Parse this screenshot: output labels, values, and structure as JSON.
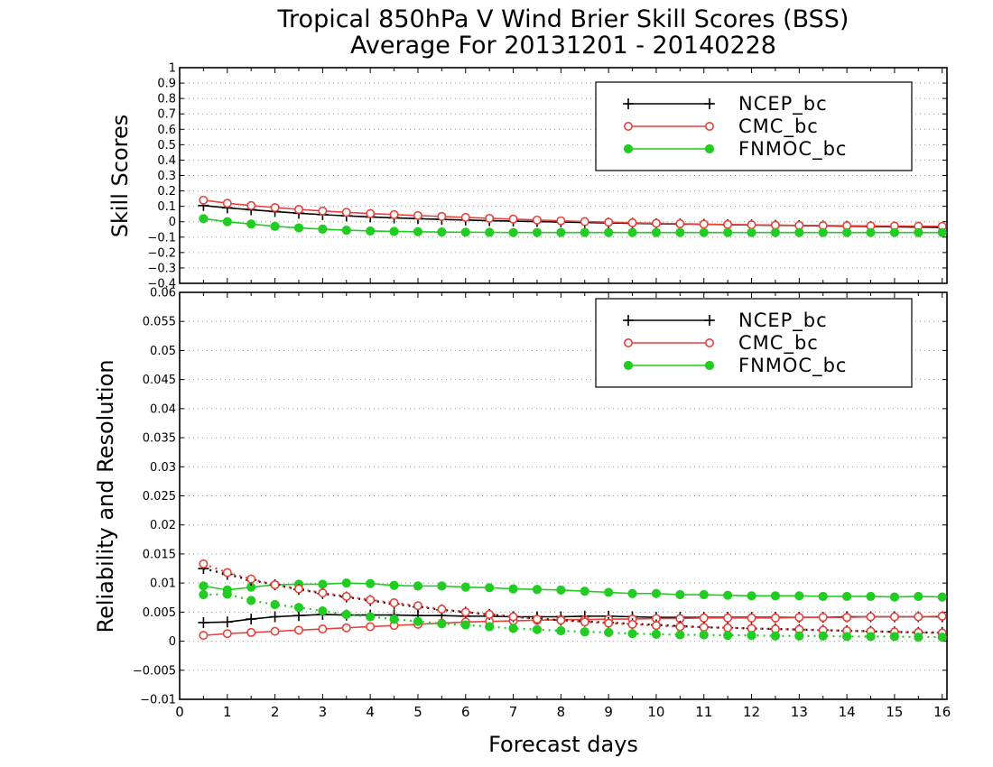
{
  "title_line1": "Tropical 850hPa V Wind Brier Skill Scores (BSS)",
  "title_line2": "Average For 20131201 - 20140228",
  "colors": {
    "NCEP_bc": "#000000",
    "CMC_bc": "#e8413a",
    "FNMOC_bc": "#22cc22",
    "grid": "#9a9a9a"
  },
  "chart_data": [
    {
      "type": "line",
      "ylabel": "Skill Scores",
      "ylim": [
        -0.4,
        1
      ],
      "yticks": [
        "−0.4",
        "−0.3",
        "−0.2",
        "−0.1",
        "0",
        "0.1",
        "0.2",
        "0.3",
        "0.4",
        "0.5",
        "0.6",
        "0.7",
        "0.8",
        "0.9",
        "1"
      ],
      "xlim": [
        0,
        16.1
      ],
      "x": [
        0.5,
        1,
        1.5,
        2,
        2.5,
        3,
        3.5,
        4,
        4.5,
        5,
        5.5,
        6,
        6.5,
        7,
        7.5,
        8,
        8.5,
        9,
        9.5,
        10,
        10.5,
        11,
        11.5,
        12,
        12.5,
        13,
        13.5,
        14,
        14.5,
        15,
        15.5,
        16
      ],
      "grid": true,
      "legend_position": "top-right",
      "series": [
        {
          "name": "NCEP_bc",
          "marker": "plus",
          "line": "solid",
          "values": [
            0.105,
            0.09,
            0.078,
            0.066,
            0.055,
            0.046,
            0.038,
            0.031,
            0.025,
            0.02,
            0.015,
            0.011,
            0.007,
            0.004,
            0.001,
            -0.002,
            -0.005,
            -0.008,
            -0.01,
            -0.013,
            -0.015,
            -0.017,
            -0.019,
            -0.021,
            -0.023,
            -0.025,
            -0.027,
            -0.029,
            -0.031,
            -0.033,
            -0.035,
            -0.037
          ]
        },
        {
          "name": "CMC_bc",
          "marker": "circle",
          "line": "solid",
          "values": [
            0.14,
            0.12,
            0.105,
            0.092,
            0.08,
            0.07,
            0.061,
            0.053,
            0.046,
            0.04,
            0.034,
            0.028,
            0.022,
            0.017,
            0.011,
            0.006,
            0.001,
            -0.003,
            -0.007,
            -0.01,
            -0.013,
            -0.016,
            -0.018,
            -0.02,
            -0.022,
            -0.024,
            -0.025,
            -0.026,
            -0.027,
            -0.028,
            -0.029,
            -0.03
          ]
        },
        {
          "name": "FNMOC_bc",
          "marker": "dot",
          "line": "solid",
          "values": [
            0.02,
            0,
            -0.015,
            -0.03,
            -0.04,
            -0.048,
            -0.055,
            -0.06,
            -0.063,
            -0.065,
            -0.067,
            -0.068,
            -0.069,
            -0.07,
            -0.07,
            -0.07,
            -0.07,
            -0.07,
            -0.07,
            -0.07,
            -0.07,
            -0.07,
            -0.07,
            -0.07,
            -0.07,
            -0.07,
            -0.07,
            -0.07,
            -0.07,
            -0.07,
            -0.07,
            -0.07
          ]
        }
      ]
    },
    {
      "type": "line",
      "xlabel": "Forecast days",
      "ylabel": "Reliability and Resolution",
      "ylim": [
        -0.01,
        0.06
      ],
      "yticks": [
        "−0.01",
        "−0.005",
        "0",
        "0.005",
        "0.01",
        "0.015",
        "0.02",
        "0.025",
        "0.03",
        "0.035",
        "0.04",
        "0.045",
        "0.05",
        "0.055",
        "0.06"
      ],
      "xlim": [
        0,
        16.1
      ],
      "xticks": [
        "0",
        "1",
        "2",
        "3",
        "4",
        "5",
        "6",
        "7",
        "8",
        "9",
        "10",
        "11",
        "12",
        "13",
        "14",
        "15",
        "16"
      ],
      "x": [
        0.5,
        1,
        1.5,
        2,
        2.5,
        3,
        3.5,
        4,
        4.5,
        5,
        5.5,
        6,
        6.5,
        7,
        7.5,
        8,
        8.5,
        9,
        9.5,
        10,
        10.5,
        11,
        11.5,
        12,
        12.5,
        13,
        13.5,
        14,
        14.5,
        15,
        15.5,
        16
      ],
      "grid": true,
      "legend_position": "top-right",
      "series": [
        {
          "name": "NCEP_bc",
          "marker": "plus",
          "line": "solid",
          "values": [
            0.0032,
            0.0033,
            0.0038,
            0.0042,
            0.0044,
            0.0046,
            0.0045,
            0.0045,
            0.0045,
            0.0044,
            0.0044,
            0.0043,
            0.0043,
            0.0042,
            0.0042,
            0.0042,
            0.0043,
            0.0043,
            0.0042,
            0.0041,
            0.0041,
            0.0041,
            0.0041,
            0.0041,
            0.0041,
            0.0041,
            0.0041,
            0.0042,
            0.0042,
            0.0042,
            0.0042,
            0.0042
          ]
        },
        {
          "name": "CMC_bc",
          "marker": "circle",
          "line": "solid",
          "values": [
            0.001,
            0.0013,
            0.0015,
            0.0017,
            0.0019,
            0.0021,
            0.0023,
            0.0025,
            0.0027,
            0.0029,
            0.0031,
            0.0033,
            0.0034,
            0.0035,
            0.0036,
            0.0037,
            0.0037,
            0.0038,
            0.0038,
            0.0039,
            0.0039,
            0.004,
            0.004,
            0.004,
            0.004,
            0.0041,
            0.0041,
            0.0041,
            0.0042,
            0.0042,
            0.0042,
            0.0043
          ]
        },
        {
          "name": "FNMOC_bc",
          "marker": "dot",
          "line": "solid",
          "values": [
            0.0095,
            0.0088,
            0.0093,
            0.0097,
            0.0098,
            0.0098,
            0.01,
            0.0099,
            0.0096,
            0.0095,
            0.0095,
            0.0093,
            0.0092,
            0.009,
            0.0089,
            0.0088,
            0.0086,
            0.0084,
            0.0082,
            0.0082,
            0.008,
            0.008,
            0.0079,
            0.0078,
            0.0078,
            0.0078,
            0.0077,
            0.0077,
            0.0077,
            0.0076,
            0.0077,
            0.0076
          ]
        },
        {
          "name": "NCEP_bc resolution",
          "marker": "plus",
          "line": "dotted",
          "values": [
            0.0125,
            0.0115,
            0.0105,
            0.0097,
            0.0089,
            0.0082,
            0.0076,
            0.007,
            0.0064,
            0.0059,
            0.0054,
            0.005,
            0.0046,
            0.0042,
            0.0039,
            0.0036,
            0.0034,
            0.0032,
            0.003,
            0.0028,
            0.0026,
            0.0024,
            0.0023,
            0.0022,
            0.0021,
            0.002,
            0.0019,
            0.0018,
            0.0017,
            0.0016,
            0.0015,
            0.0015
          ]
        },
        {
          "name": "CMC_bc resolution",
          "marker": "circle",
          "line": "dotted",
          "values": [
            0.0133,
            0.0118,
            0.0107,
            0.0097,
            0.009,
            0.0083,
            0.0077,
            0.0071,
            0.0066,
            0.0061,
            0.0055,
            0.005,
            0.0046,
            0.0042,
            0.0038,
            0.0036,
            0.0033,
            0.0031,
            0.0029,
            0.0027,
            0.0025,
            0.0024,
            0.0023,
            0.0022,
            0.0021,
            0.002,
            0.0019,
            0.0018,
            0.0017,
            0.0016,
            0.0015,
            0.0014
          ]
        },
        {
          "name": "FNMOC_bc resolution",
          "marker": "dot",
          "line": "dotted",
          "values": [
            0.008,
            0.0081,
            0.007,
            0.0063,
            0.0058,
            0.0052,
            0.0046,
            0.0042,
            0.0038,
            0.0034,
            0.003,
            0.0028,
            0.0025,
            0.0022,
            0.002,
            0.0018,
            0.0016,
            0.0015,
            0.0013,
            0.0012,
            0.0011,
            0.0011,
            0.001,
            0.001,
            0.0009,
            0.0009,
            0.0009,
            0.0008,
            0.0008,
            0.0008,
            0.0007,
            0.0007
          ]
        }
      ]
    }
  ],
  "legend_entries": [
    "NCEP_bc",
    "CMC_bc",
    "FNMOC_bc"
  ]
}
